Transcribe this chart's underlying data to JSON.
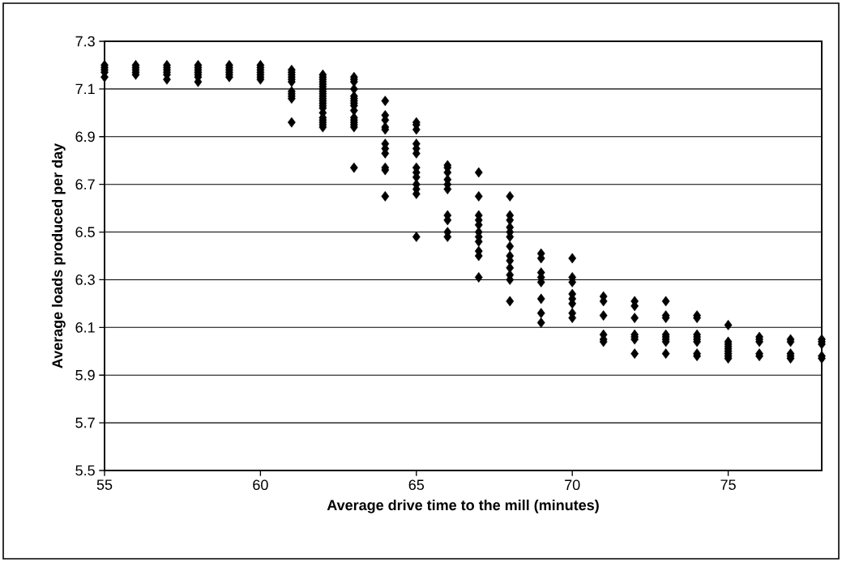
{
  "chart_data": {
    "type": "scatter",
    "xlabel": "Average drive time to the mill (minutes)",
    "ylabel": "Average loads produced per day",
    "xlim": [
      55,
      78
    ],
    "xticks": [
      55,
      60,
      65,
      70,
      75
    ],
    "ylim": [
      5.5,
      7.3
    ],
    "yticks": [
      5.5,
      5.7,
      5.9,
      6.1,
      6.3,
      6.5,
      6.7,
      6.9,
      7.1,
      7.3
    ],
    "grid": "y",
    "marker": "diamond",
    "series": [
      {
        "color": "#000000",
        "x": [
          55,
          55,
          55,
          55,
          55,
          56,
          56,
          56,
          56,
          56,
          57,
          57,
          57,
          57,
          57,
          57,
          58,
          58,
          58,
          58,
          58,
          58,
          58,
          59,
          59,
          59,
          59,
          59,
          59,
          60,
          60,
          60,
          60,
          60,
          60,
          60,
          61,
          61,
          61,
          61,
          61,
          61,
          61,
          61,
          61,
          61,
          61,
          62,
          62,
          62,
          62,
          62,
          62,
          62,
          62,
          62,
          62,
          62,
          62,
          62,
          62,
          62,
          62,
          62,
          62,
          62,
          62,
          62,
          63,
          63,
          63,
          63,
          63,
          63,
          63,
          63,
          63,
          63,
          63,
          63,
          63,
          63,
          63,
          63,
          64,
          64,
          64,
          64,
          64,
          64,
          64,
          64,
          64,
          64,
          64,
          65,
          65,
          65,
          65,
          65,
          65,
          65,
          65,
          65,
          65,
          65,
          65,
          65,
          66,
          66,
          66,
          66,
          66,
          66,
          66,
          66,
          66,
          66,
          67,
          67,
          67,
          67,
          67,
          67,
          67,
          67,
          67,
          67,
          67,
          68,
          68,
          68,
          68,
          68,
          68,
          68,
          68,
          68,
          68,
          68,
          68,
          68,
          69,
          69,
          69,
          69,
          69,
          69,
          69,
          69,
          70,
          70,
          70,
          70,
          70,
          70,
          70,
          70,
          71,
          71,
          71,
          71,
          71,
          71,
          72,
          72,
          72,
          72,
          72,
          72,
          72,
          73,
          73,
          73,
          73,
          73,
          73,
          73,
          73,
          74,
          74,
          74,
          74,
          74,
          74,
          74,
          74,
          75,
          75,
          75,
          75,
          75,
          75,
          75,
          75,
          75,
          76,
          76,
          76,
          76,
          76,
          77,
          77,
          77,
          77,
          77,
          78,
          78,
          78,
          78,
          78
        ],
        "values": [
          7.15,
          7.17,
          7.18,
          7.19,
          7.2,
          7.16,
          7.17,
          7.18,
          7.19,
          7.2,
          7.14,
          7.16,
          7.17,
          7.18,
          7.19,
          7.2,
          7.13,
          7.15,
          7.16,
          7.17,
          7.18,
          7.19,
          7.2,
          7.15,
          7.16,
          7.17,
          7.18,
          7.19,
          7.2,
          7.14,
          7.15,
          7.16,
          7.17,
          7.18,
          7.19,
          7.2,
          6.96,
          7.06,
          7.07,
          7.08,
          7.09,
          7.13,
          7.14,
          7.15,
          7.16,
          7.17,
          7.18,
          6.94,
          6.95,
          6.96,
          6.97,
          6.98,
          7.0,
          7.02,
          7.03,
          7.04,
          7.05,
          7.06,
          7.07,
          7.08,
          7.09,
          7.1,
          7.11,
          7.12,
          7.13,
          7.14,
          7.15,
          7.16,
          6.77,
          6.94,
          6.95,
          6.96,
          6.97,
          6.98,
          7.01,
          7.03,
          7.04,
          7.05,
          7.06,
          7.07,
          7.1,
          7.13,
          7.14,
          7.15,
          7.05,
          6.99,
          6.97,
          6.94,
          6.93,
          6.87,
          6.85,
          6.83,
          6.77,
          6.76,
          6.65,
          6.96,
          6.95,
          6.93,
          6.87,
          6.85,
          6.83,
          6.77,
          6.75,
          6.73,
          6.7,
          6.68,
          6.66,
          6.48,
          6.78,
          6.77,
          6.75,
          6.72,
          6.7,
          6.68,
          6.57,
          6.55,
          6.5,
          6.48,
          6.75,
          6.65,
          6.57,
          6.55,
          6.53,
          6.5,
          6.48,
          6.46,
          6.42,
          6.4,
          6.31,
          6.65,
          6.57,
          6.55,
          6.52,
          6.5,
          6.48,
          6.44,
          6.4,
          6.38,
          6.35,
          6.32,
          6.3,
          6.21,
          6.41,
          6.39,
          6.33,
          6.31,
          6.29,
          6.22,
          6.16,
          6.12,
          6.39,
          6.31,
          6.29,
          6.24,
          6.22,
          6.2,
          6.16,
          6.14,
          6.23,
          6.21,
          6.15,
          6.07,
          6.05,
          6.04,
          6.21,
          6.19,
          6.14,
          6.07,
          6.06,
          6.05,
          5.99,
          6.21,
          6.15,
          6.14,
          6.07,
          6.06,
          6.05,
          6.04,
          5.99,
          6.15,
          6.14,
          6.07,
          6.06,
          6.05,
          6.04,
          5.99,
          5.98,
          6.11,
          6.04,
          6.03,
          6.02,
          6.01,
          6.0,
          5.99,
          5.98,
          5.97,
          6.06,
          6.05,
          6.04,
          5.99,
          5.98,
          6.05,
          6.04,
          5.99,
          5.98,
          5.97,
          6.05,
          6.04,
          6.03,
          5.98,
          5.97
        ]
      }
    ]
  }
}
